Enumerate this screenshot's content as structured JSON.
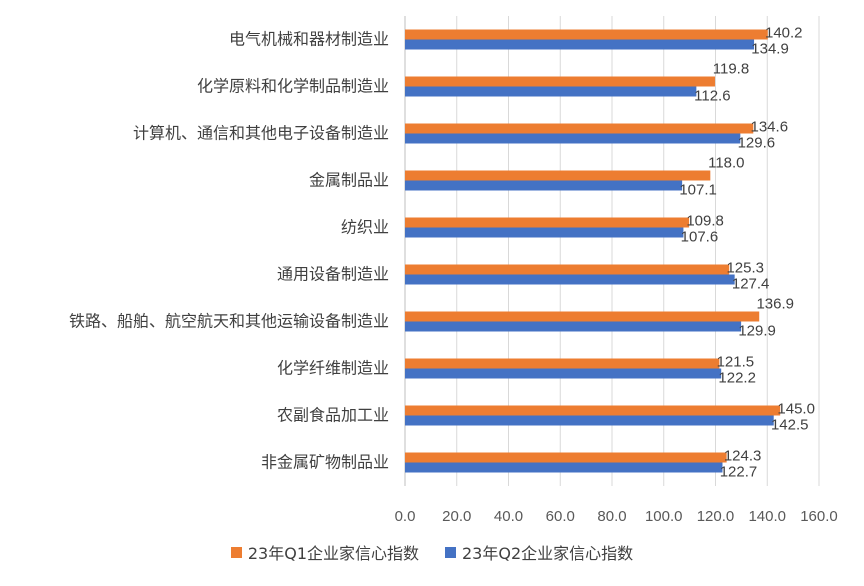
{
  "chart_data": {
    "type": "bar",
    "orientation": "horizontal",
    "categories": [
      "电气机械和器材制造业",
      "化学原料和化学制品制造业",
      "计算机、通信和其他电子设备制造业",
      "金属制品业",
      "纺织业",
      "通用设备制造业",
      "铁路、船舶、航空航天和其他运输设备制造业",
      "化学纤维制造业",
      "农副食品加工业",
      "非金属矿物制品业"
    ],
    "series": [
      {
        "name": "23年Q1企业家信心指数",
        "color": "#ED7D31",
        "values": [
          140.2,
          119.8,
          134.6,
          118.0,
          109.8,
          125.3,
          136.9,
          121.5,
          145.0,
          124.3
        ]
      },
      {
        "name": "23年Q2企业家信心指数",
        "color": "#4472C4",
        "values": [
          134.9,
          112.6,
          129.6,
          107.1,
          107.6,
          127.4,
          129.9,
          122.2,
          142.5,
          122.7
        ]
      }
    ],
    "xlim": [
      0,
      160
    ],
    "xticks": [
      "0.0",
      "20.0",
      "40.0",
      "60.0",
      "80.0",
      "100.0",
      "120.0",
      "140.0",
      "160.0"
    ],
    "grid": "vertical",
    "legend": "bottom"
  }
}
